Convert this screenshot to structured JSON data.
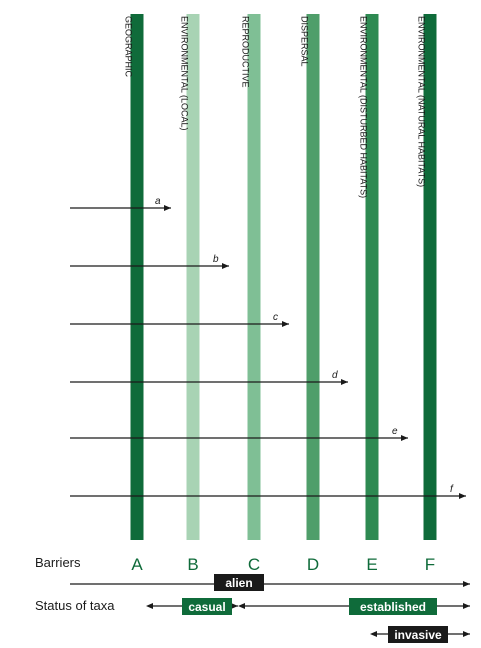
{
  "barriers": [
    {
      "letter": "A",
      "label": "GEOGRAPHIC",
      "color": "#0f6b3a"
    },
    {
      "letter": "B",
      "label": "ENVIRONMENTAL (LOCAL)",
      "color": "#a8d3b4"
    },
    {
      "letter": "C",
      "label": "REPRODUCTIVE",
      "color": "#7fbf95"
    },
    {
      "letter": "D",
      "label": "DISPERSAL",
      "color": "#4f9e6a"
    },
    {
      "letter": "E",
      "label": "ENVIRONMENTAL (DISTURBED HABITATS)",
      "color": "#2e8a52"
    },
    {
      "letter": "F",
      "label": "ENVIRONMENTAL (NATURAL HABITATS)",
      "color": "#0f6b3a"
    }
  ],
  "arrows": [
    "a",
    "b",
    "c",
    "d",
    "e",
    "f"
  ],
  "row_labels": {
    "barriers": "Barriers",
    "status": "Status of taxa"
  },
  "status_boxes": {
    "alien": "alien",
    "casual": "casual",
    "established": "established",
    "invasive": "invasive"
  },
  "colors": {
    "box_green": "#0f6b3a",
    "box_black": "#1a1a1a"
  }
}
